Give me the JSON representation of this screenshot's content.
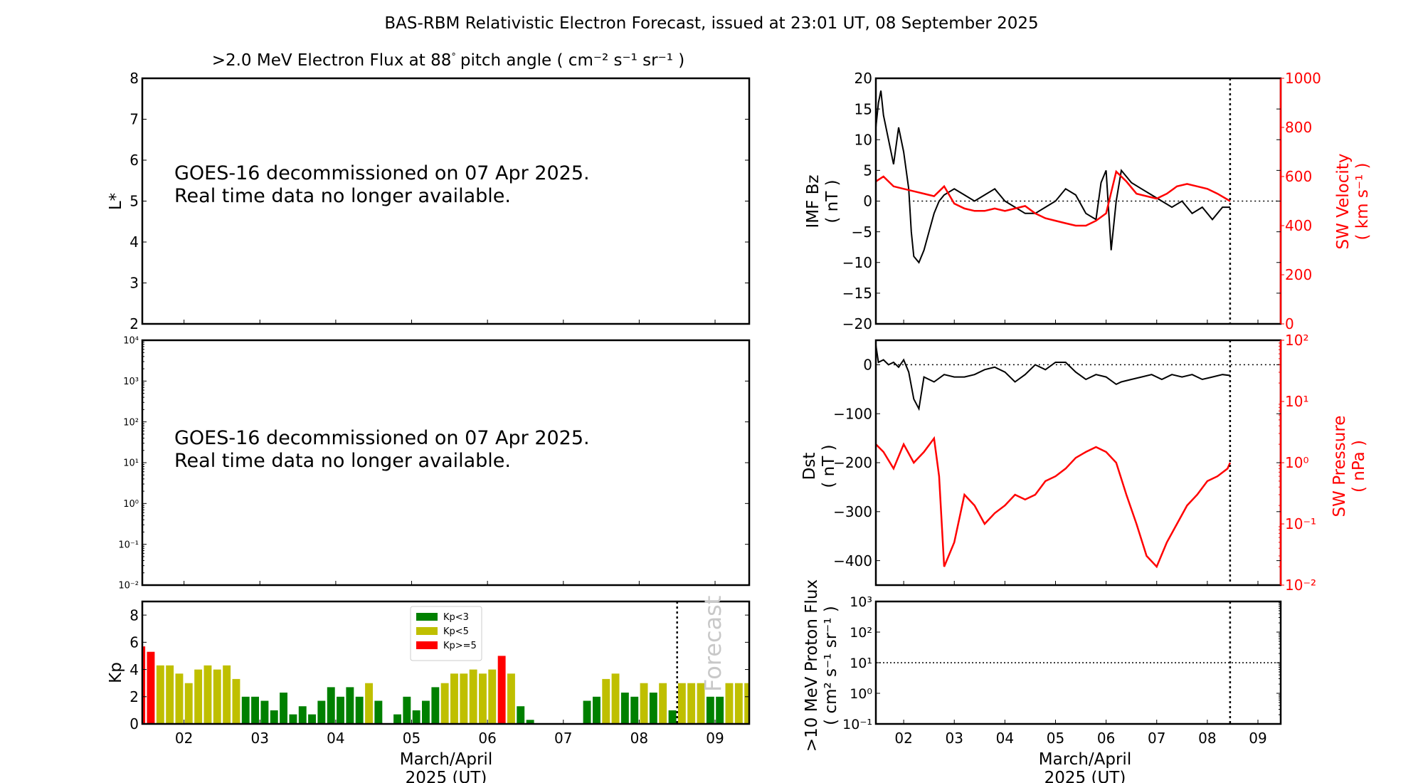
{
  "figure": {
    "title": "BAS-RBM Relativistic Electron Forecast, issued at 23:01 UT, 08 September 2025",
    "subtitle_main": ">2.0 MeV Electron Flux at 88",
    "subtitle_deg": "°",
    "subtitle_units": "pitch angle ( cm⁻² s⁻¹ sr⁻¹ )",
    "xlabel_line1": "March/April",
    "xlabel_line2": "2025 (UT)",
    "notice_line1": "GOES-16 decommissioned on 07 Apr 2025.",
    "notice_line2": "Real time data no longer available.",
    "forecast_label": "Forecast",
    "colors": {
      "kp_low": "#008000",
      "kp_mid": "#bfbf00",
      "kp_high": "#ff0000",
      "secondary_axis": "#ff0000",
      "forecast_text": "#c8c8c8"
    }
  },
  "chart_data": [
    {
      "id": "lstar",
      "type": "heatmap",
      "title": ">2.0 MeV Electron Flux at 88° pitch angle ( cm^-2 s^-1 sr^-1 )",
      "ylabel": "L*",
      "ylim": [
        2,
        8
      ],
      "yticks": [
        "2",
        "3",
        "4",
        "5",
        "6",
        "7",
        "8"
      ],
      "xlim": [
        1.45,
        9.45
      ],
      "annotation": [
        "GOES-16 decommissioned on 07 Apr 2025.",
        "Real time data no longer available."
      ],
      "values": []
    },
    {
      "id": "flux-log",
      "type": "line",
      "ylabel": "",
      "yscale": "log",
      "ylim": [
        0.01,
        10000
      ],
      "yticks": [
        "10⁻²",
        "10⁻¹",
        "10⁰",
        "10¹",
        "10²",
        "10³",
        "10⁴"
      ],
      "xlim": [
        1.45,
        9.45
      ],
      "annotation": [
        "GOES-16 decommissioned on 07 Apr 2025.",
        "Real time data no longer available."
      ],
      "values": []
    },
    {
      "id": "kp",
      "type": "bar",
      "ylabel": "Kp",
      "ylim": [
        0,
        9
      ],
      "yticks": [
        "0",
        "2",
        "4",
        "6",
        "8"
      ],
      "xlabel": "March/April 2025 (UT)",
      "xlim": [
        1.45,
        9.45
      ],
      "xticks": [
        2,
        3,
        4,
        5,
        6,
        7,
        8,
        9
      ],
      "xticklabels": [
        "02",
        "03",
        "04",
        "05",
        "06",
        "07",
        "08",
        "09"
      ],
      "bar_width_days": 0.125,
      "forecast_start": 8.5,
      "legend": {
        "placement": "top-center",
        "entries": [
          "Kp<3",
          "Kp<5",
          "Kp>=5"
        ]
      },
      "x": [
        1.4375,
        1.5625,
        1.6875,
        1.8125,
        1.9375,
        2.0625,
        2.1875,
        2.3125,
        2.4375,
        2.5625,
        2.6875,
        2.8125,
        2.9375,
        3.0625,
        3.1875,
        3.3125,
        3.4375,
        3.5625,
        3.6875,
        3.8125,
        3.9375,
        4.0625,
        4.1875,
        4.3125,
        4.4375,
        4.5625,
        4.6875,
        4.8125,
        4.9375,
        5.0625,
        5.1875,
        5.3125,
        5.4375,
        5.5625,
        5.6875,
        5.8125,
        5.9375,
        6.0625,
        6.1875,
        6.3125,
        6.4375,
        6.5625,
        6.6875,
        6.8125,
        6.9375,
        7.0625,
        7.1875,
        7.3125,
        7.4375,
        7.5625,
        7.6875,
        7.8125,
        7.9375,
        8.0625,
        8.1875,
        8.3125,
        8.4375,
        8.5625,
        8.6875,
        8.8125,
        8.9375,
        9.0625,
        9.1875,
        9.3125,
        9.4375
      ],
      "values": [
        5.7,
        5.3,
        4.3,
        4.3,
        3.7,
        3.0,
        4.0,
        4.3,
        4.0,
        4.3,
        3.3,
        2.0,
        2.0,
        1.7,
        1.0,
        2.3,
        0.7,
        1.3,
        0.7,
        1.7,
        2.7,
        2.0,
        2.7,
        2.0,
        3.0,
        1.7,
        0,
        0.7,
        2.0,
        1.0,
        1.7,
        2.7,
        3.0,
        3.7,
        3.7,
        4.0,
        3.7,
        4.0,
        5.0,
        3.7,
        1.3,
        0.3,
        0,
        0,
        0,
        0,
        0,
        1.7,
        2.0,
        3.3,
        3.7,
        2.3,
        2.0,
        3.0,
        2.3,
        3.0,
        1.0,
        3.0,
        3.0,
        3.0,
        2.0,
        2.0,
        3.0,
        3.0,
        3.0
      ]
    },
    {
      "id": "imf-bz",
      "type": "line",
      "ylabel": "IMF Bz ( nT )",
      "ylim": [
        -20,
        20
      ],
      "yticks": [
        "−20",
        "−15",
        "−10",
        "−5",
        "0",
        "5",
        "10",
        "15",
        "20"
      ],
      "y2label": "SW Velocity ( km s⁻¹ )",
      "y2lim": [
        0,
        1000
      ],
      "y2ticks": [
        "0",
        "200",
        "400",
        "600",
        "800",
        "1000"
      ],
      "xlim": [
        1.45,
        9.45
      ],
      "forecast_start": 8.45,
      "series": [
        {
          "name": "IMF Bz",
          "color": "#000000",
          "x": [
            1.45,
            1.5,
            1.55,
            1.6,
            1.7,
            1.8,
            1.9,
            2.0,
            2.1,
            2.15,
            2.2,
            2.3,
            2.4,
            2.5,
            2.6,
            2.7,
            2.8,
            3.0,
            3.2,
            3.4,
            3.6,
            3.8,
            4.0,
            4.2,
            4.4,
            4.6,
            4.8,
            5.0,
            5.2,
            5.4,
            5.6,
            5.8,
            5.9,
            6.0,
            6.1,
            6.2,
            6.3,
            6.5,
            6.7,
            6.9,
            7.1,
            7.3,
            7.5,
            7.7,
            7.9,
            8.1,
            8.3,
            8.45
          ],
          "values": [
            12,
            16,
            18,
            14,
            10,
            6,
            12,
            8,
            2,
            -5,
            -9,
            -10,
            -8,
            -5,
            -2,
            0,
            1,
            2,
            1,
            0,
            1,
            2,
            0,
            -1,
            -2,
            -2,
            -1,
            0,
            2,
            1,
            -2,
            -3,
            3,
            5,
            -8,
            0,
            5,
            3,
            2,
            1,
            0,
            -1,
            0,
            -2,
            -1,
            -3,
            -1,
            -1
          ]
        },
        {
          "name": "SW Velocity",
          "color": "#ff0000",
          "axis": "right",
          "x": [
            1.45,
            1.6,
            1.8,
            2.0,
            2.2,
            2.4,
            2.6,
            2.8,
            3.0,
            3.2,
            3.4,
            3.6,
            3.8,
            4.0,
            4.2,
            4.4,
            4.6,
            4.8,
            5.0,
            5.2,
            5.4,
            5.6,
            5.8,
            6.0,
            6.2,
            6.4,
            6.6,
            6.8,
            7.0,
            7.2,
            7.4,
            7.6,
            7.8,
            8.0,
            8.2,
            8.45
          ],
          "values": [
            580,
            600,
            560,
            550,
            540,
            530,
            520,
            560,
            490,
            470,
            460,
            460,
            470,
            460,
            470,
            480,
            450,
            430,
            420,
            410,
            400,
            400,
            420,
            450,
            620,
            580,
            530,
            520,
            510,
            530,
            560,
            570,
            560,
            550,
            530,
            500
          ]
        }
      ]
    },
    {
      "id": "dst",
      "type": "line",
      "ylabel": "Dst ( nT )",
      "ylim": [
        -450,
        50
      ],
      "yticks": [
        "−400",
        "−300",
        "−200",
        "−100",
        "0"
      ],
      "y2label": "SW Pressure ( nPa )",
      "y2scale": "log",
      "y2lim": [
        0.01,
        100
      ],
      "y2ticks": [
        "10⁻²",
        "10⁻¹",
        "10⁰",
        "10¹",
        "10²"
      ],
      "xlim": [
        1.45,
        9.45
      ],
      "forecast_start": 8.45,
      "series": [
        {
          "name": "Dst",
          "color": "#000000",
          "x": [
            1.45,
            1.5,
            1.6,
            1.7,
            1.8,
            1.9,
            2.0,
            2.1,
            2.2,
            2.3,
            2.4,
            2.6,
            2.8,
            3.0,
            3.2,
            3.4,
            3.6,
            3.8,
            4.0,
            4.2,
            4.4,
            4.6,
            4.8,
            5.0,
            5.2,
            5.4,
            5.6,
            5.8,
            6.0,
            6.2,
            6.3,
            6.5,
            6.7,
            6.9,
            7.1,
            7.3,
            7.5,
            7.7,
            7.9,
            8.1,
            8.3,
            8.45
          ],
          "values": [
            40,
            5,
            10,
            0,
            5,
            -5,
            10,
            -15,
            -70,
            -90,
            -25,
            -35,
            -20,
            -25,
            -25,
            -20,
            -10,
            -5,
            -15,
            -35,
            -20,
            0,
            -10,
            5,
            5,
            -15,
            -30,
            -20,
            -25,
            -40,
            -35,
            -30,
            -25,
            -20,
            -30,
            -20,
            -25,
            -20,
            -30,
            -25,
            -20,
            -22
          ]
        },
        {
          "name": "SW Pressure",
          "color": "#ff0000",
          "axis": "right",
          "x": [
            1.45,
            1.6,
            1.8,
            2.0,
            2.2,
            2.4,
            2.6,
            2.7,
            2.8,
            3.0,
            3.2,
            3.4,
            3.6,
            3.8,
            4.0,
            4.2,
            4.4,
            4.6,
            4.8,
            5.0,
            5.2,
            5.4,
            5.6,
            5.8,
            6.0,
            6.2,
            6.4,
            6.6,
            6.8,
            7.0,
            7.2,
            7.4,
            7.6,
            7.8,
            8.0,
            8.2,
            8.4,
            8.45
          ],
          "values": [
            2.0,
            1.5,
            0.8,
            2.0,
            1.0,
            1.5,
            2.5,
            0.6,
            0.02,
            0.05,
            0.3,
            0.2,
            0.1,
            0.15,
            0.2,
            0.3,
            0.25,
            0.3,
            0.5,
            0.6,
            0.8,
            1.2,
            1.5,
            1.8,
            1.5,
            1.0,
            0.3,
            0.1,
            0.03,
            0.02,
            0.05,
            0.1,
            0.2,
            0.3,
            0.5,
            0.6,
            0.8,
            1.0
          ]
        }
      ]
    },
    {
      "id": "proton-flux",
      "type": "line",
      "ylabel": ">10 MeV Proton Flux ( cm² s⁻¹ sr⁻¹ )",
      "yscale": "log",
      "ylim": [
        0.1,
        1000
      ],
      "yticks": [
        "10⁻¹",
        "10⁰",
        "10¹",
        "10²",
        "10³"
      ],
      "threshold": 10,
      "xlabel": "March/April 2025 (UT)",
      "xlim": [
        1.45,
        9.45
      ],
      "xticks": [
        2,
        3,
        4,
        5,
        6,
        7,
        8,
        9
      ],
      "xticklabels": [
        "02",
        "03",
        "04",
        "05",
        "06",
        "07",
        "08",
        "09"
      ],
      "forecast_start": 8.45,
      "values": []
    }
  ]
}
